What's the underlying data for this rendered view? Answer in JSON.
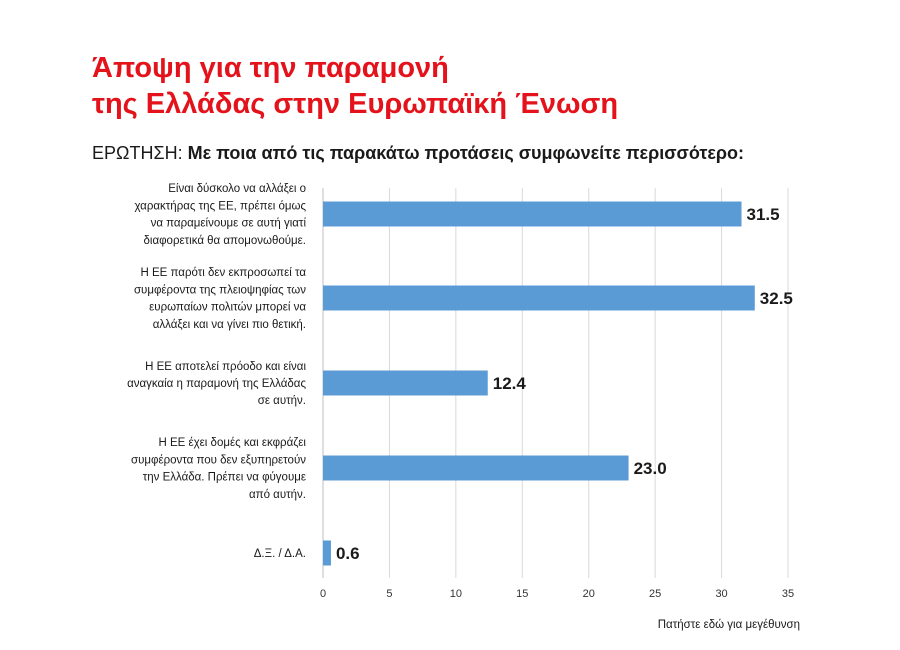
{
  "title": {
    "line1": "Άποψη για την παραμονή",
    "line2": "της Ελλάδας στην Ευρωπαϊκή Ένωση"
  },
  "question": {
    "prefix": "ΕΡΩΤΗΣΗ:",
    "text": "Με ποια από τις παρακάτω προτάσεις συμφωνείτε περισσότερο:"
  },
  "footer": {
    "enlarge_link": "Πατήστε εδώ για μεγέθυνση"
  },
  "chart_data": {
    "type": "bar",
    "orientation": "horizontal",
    "categories": [
      [
        "Είναι δύσκολο να αλλάξει ο",
        "χαρακτήρας της ΕΕ, πρέπει όμως",
        "να παραμείνουμε σε αυτή γιατί",
        "διαφορετικά θα απομονωθούμε."
      ],
      [
        "Η ΕΕ παρότι δεν εκπροσωπεί τα",
        "συμφέροντα της πλειοψηφίας των",
        "ευρωπαίων πολιτών μπορεί να",
        "αλλάξει και να γίνει πιο θετική."
      ],
      [
        "Η ΕΕ αποτελεί πρόοδο και είναι",
        "αναγκαία η παραμονή της Ελλάδας",
        "σε αυτήν."
      ],
      [
        "Η ΕΕ έχει δομές και εκφράζει",
        "συμφέροντα που δεν εξυπηρετούν",
        "την Ελλάδα. Πρέπει να φύγουμε",
        "από αυτήν."
      ],
      [
        "Δ.Ξ. / Δ.Α."
      ]
    ],
    "values": [
      31.5,
      32.5,
      12.4,
      23.0,
      0.6
    ],
    "value_labels": [
      "31.5",
      "32.5",
      "12.4",
      "23.0",
      "0.6"
    ],
    "xlim": [
      0,
      35
    ],
    "xticks": [
      0,
      5,
      10,
      15,
      20,
      25,
      30,
      35
    ],
    "bar_color": "#5b9bd5",
    "gridlines": true,
    "legend": false
  },
  "colors": {
    "title": "#e3121b",
    "bar": "#5b9bd5",
    "grid": "#d9d9d9"
  }
}
